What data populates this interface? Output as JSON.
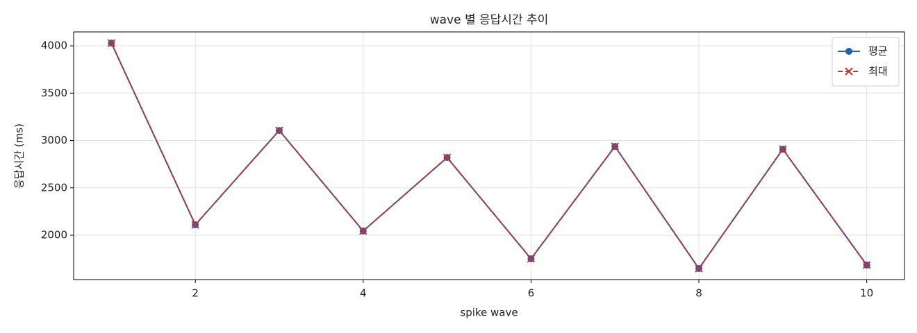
{
  "chart_data": {
    "type": "line",
    "title": "wave 별 응답시간 추이",
    "xlabel": "spike wave",
    "ylabel": "응답시간 (ms)",
    "x": [
      1,
      2,
      3,
      4,
      5,
      6,
      7,
      8,
      9,
      10
    ],
    "series": [
      {
        "name": "평균",
        "color": "#1f62b8",
        "linestyle": "solid",
        "marker": "o",
        "values": [
          4029,
          2110,
          3106,
          2044,
          2820,
          1751,
          2937,
          1648,
          2908,
          1685
        ]
      },
      {
        "name": "최대",
        "color": "#c8302f",
        "linestyle": "dashed",
        "marker": "x",
        "values": [
          4029,
          2110,
          3106,
          2044,
          2820,
          1751,
          2937,
          1648,
          2908,
          1685
        ]
      }
    ],
    "xlim": [
      0.55,
      10.45
    ],
    "xticks": [
      2,
      4,
      6,
      8,
      10
    ],
    "ylim": [
      1531,
      4147
    ],
    "yticks": [
      2000,
      2500,
      3000,
      3500,
      4000
    ],
    "grid": true,
    "legend": "upper right"
  }
}
